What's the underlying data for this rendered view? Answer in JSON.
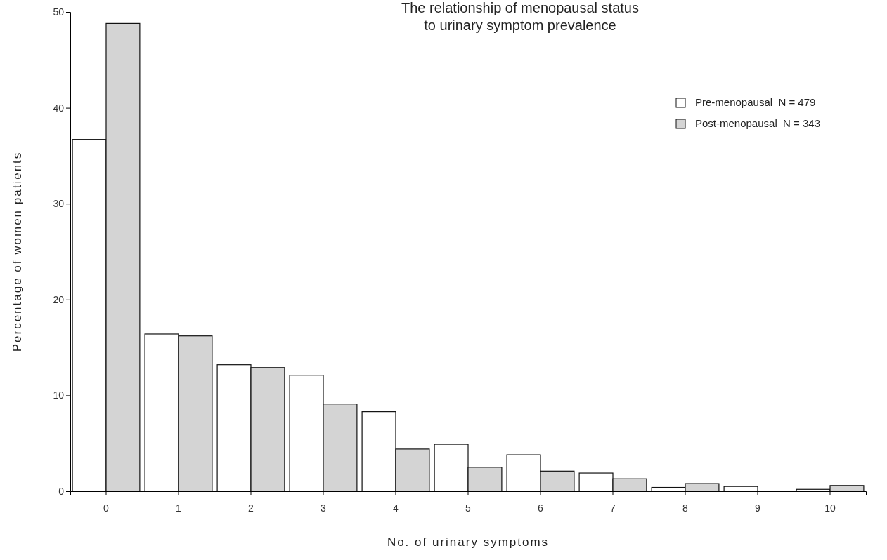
{
  "chart_data": {
    "type": "bar",
    "title": "The relationship of menopausal status\nto urinary symptom prevalence",
    "xlabel": "No. of urinary symptoms",
    "ylabel": "Percentage of women patients",
    "categories": [
      "0",
      "1",
      "2",
      "3",
      "4",
      "5",
      "6",
      "7",
      "8",
      "9",
      "10"
    ],
    "series": [
      {
        "name": "Pre-menopausal  N = 479",
        "color": "#ffffff",
        "values": [
          36.7,
          16.4,
          13.2,
          12.1,
          8.3,
          4.9,
          3.8,
          1.9,
          0.4,
          0.5,
          0.2
        ]
      },
      {
        "name": "Post-menopausal  N = 343",
        "color": "#d4d4d4",
        "values": [
          48.8,
          16.2,
          12.9,
          9.1,
          4.4,
          2.5,
          2.1,
          1.3,
          0.8,
          0,
          0.6
        ]
      }
    ],
    "ylim": [
      0,
      50
    ],
    "yticks": [
      0,
      10,
      20,
      30,
      40,
      50
    ],
    "grid": false,
    "legend": "top right"
  }
}
